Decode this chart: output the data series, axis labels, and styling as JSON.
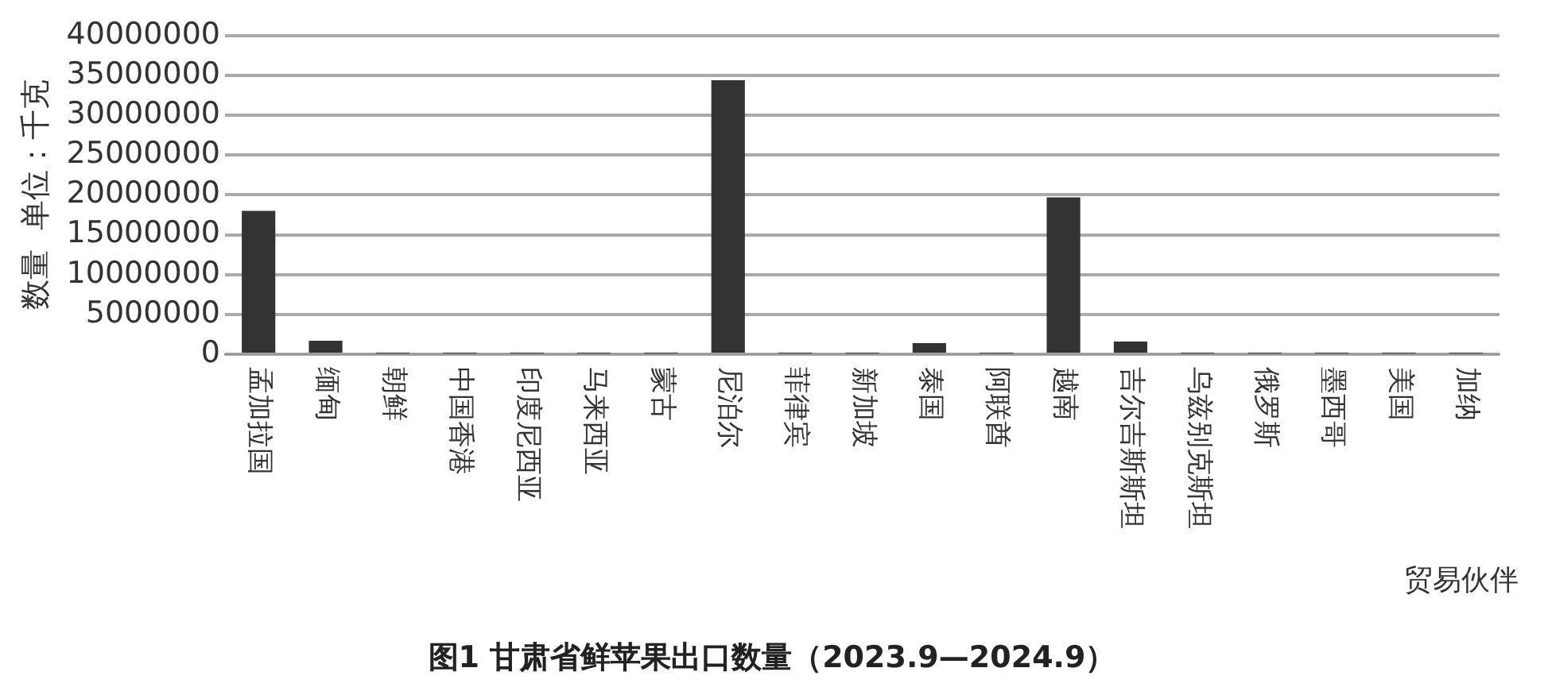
{
  "chart_data": {
    "type": "bar",
    "title": "图1 甘肃省鲜苹果出口数量（2023.9—2024.9）",
    "ylabel": "数量  单位：千克",
    "xlabel": "贸易伙伴",
    "categories": [
      "孟加拉国",
      "缅甸",
      "朝鲜",
      "中国香港",
      "印度尼西亚",
      "马来西亚",
      "蒙古",
      "尼泊尔",
      "菲律宾",
      "新加坡",
      "泰国",
      "阿联酋",
      "越南",
      "吉尔吉斯斯坦",
      "乌兹别克斯坦",
      "俄罗斯",
      "墨西哥",
      "美国",
      "加纳"
    ],
    "values": [
      18000000,
      1700000,
      100000,
      100000,
      100000,
      100000,
      100000,
      34400000,
      100000,
      100000,
      1400000,
      100000,
      19700000,
      1600000,
      100000,
      100000,
      100000,
      100000,
      100000
    ],
    "color": "#333333",
    "ylim": [
      0,
      40000000
    ],
    "yticks": [
      0,
      5000000,
      10000000,
      15000000,
      20000000,
      25000000,
      30000000,
      35000000,
      40000000
    ],
    "grid": "y"
  }
}
